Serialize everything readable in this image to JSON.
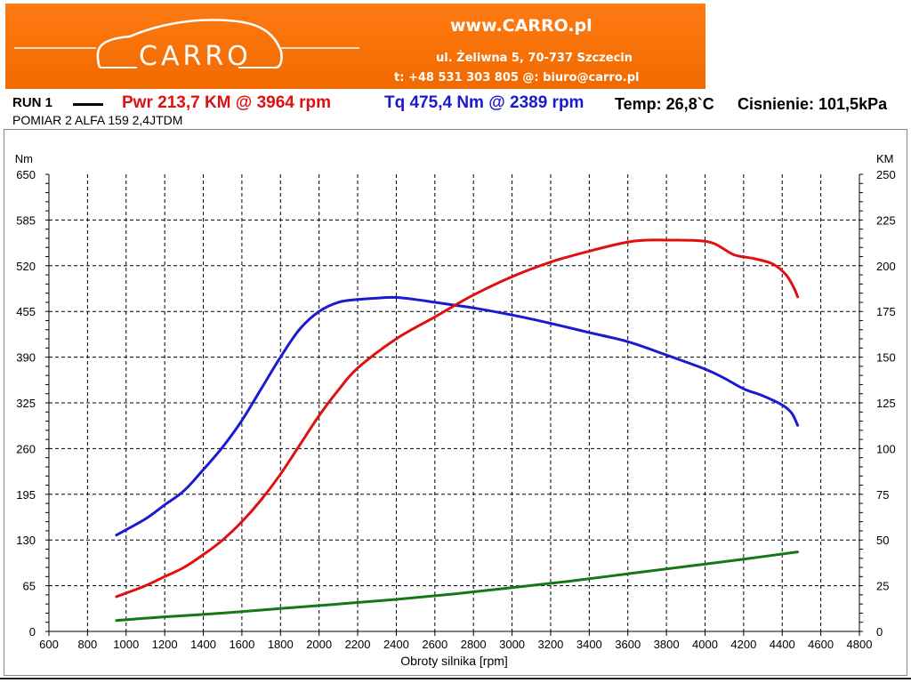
{
  "banner": {
    "logo_text": "CARRO",
    "site": "www.CARRO.pl",
    "address": "ul. Żeliwna 5, 70-737 Szczecin",
    "contact": "t: +48 531 303 805   @: biuro@carro.pl",
    "color": "#f37208"
  },
  "header": {
    "run": "RUN 1",
    "power": "Pwr  213,7 KM @ 3964 rpm",
    "torque": "Tq 475,4 Nm @ 2389 rpm",
    "temp": "Temp: 26,8`C",
    "pressure": "Cisnienie: 101,5kPa",
    "subtitle": "POMIAR 2 ALFA 159 2,4JTDM"
  },
  "chart_data": {
    "type": "line",
    "xlabel": "Obroty silnika [rpm]",
    "ylabel_left": "Nm",
    "ylabel_right": "KM",
    "xlim": [
      600,
      4800
    ],
    "ylim_left": [
      0,
      650
    ],
    "ylim_right": [
      0,
      250
    ],
    "x_ticks": [
      600,
      800,
      1000,
      1200,
      1400,
      1600,
      1800,
      2000,
      2200,
      2400,
      2600,
      2800,
      3000,
      3200,
      3400,
      3600,
      3800,
      4000,
      4200,
      4400,
      4600,
      4800
    ],
    "y_left_ticks": [
      0,
      65,
      130,
      195,
      260,
      325,
      390,
      455,
      520,
      585,
      650
    ],
    "y_right_ticks": [
      0,
      25,
      50,
      75,
      100,
      125,
      150,
      175,
      200,
      225,
      250
    ],
    "grid": true,
    "series": [
      {
        "axis": "left",
        "color": "#1a1ad0",
        "x": [
          950,
          1100,
          1200,
          1300,
          1400,
          1500,
          1600,
          1700,
          1800,
          1900,
          2000,
          2100,
          2200,
          2300,
          2389,
          2500,
          2600,
          2700,
          2800,
          3000,
          3200,
          3400,
          3600,
          3800,
          4000,
          4100,
          4200,
          4300,
          4400,
          4450,
          4480
        ],
        "values": [
          137,
          160,
          180,
          200,
          230,
          262,
          300,
          345,
          390,
          430,
          455,
          468,
          472,
          474,
          475,
          472,
          468,
          464,
          460,
          450,
          438,
          425,
          412,
          393,
          373,
          360,
          345,
          335,
          322,
          310,
          293
        ]
      },
      {
        "axis": "right",
        "color": "#e01010",
        "x": [
          950,
          1100,
          1200,
          1300,
          1400,
          1500,
          1600,
          1700,
          1800,
          1900,
          2000,
          2100,
          2200,
          2400,
          2600,
          2800,
          3000,
          3200,
          3400,
          3600,
          3700,
          3800,
          3964,
          4050,
          4150,
          4250,
          4350,
          4420,
          4460,
          4480
        ],
        "values": [
          19,
          25,
          30,
          35,
          42,
          50,
          60,
          72,
          86,
          102,
          118,
          132,
          144,
          160,
          172,
          184,
          194,
          202,
          208,
          213,
          214,
          214,
          213.7,
          212,
          206,
          204,
          201,
          195,
          188,
          183
        ]
      },
      {
        "axis": "right",
        "color": "#147814",
        "x": [
          950,
          1200,
          1500,
          1800,
          2100,
          2400,
          2700,
          3000,
          3300,
          3600,
          3900,
          4200,
          4480
        ],
        "values": [
          6,
          8,
          10,
          12.5,
          15,
          17.5,
          20.5,
          24,
          27.5,
          31.5,
          35.5,
          39.5,
          43.5
        ]
      }
    ]
  }
}
